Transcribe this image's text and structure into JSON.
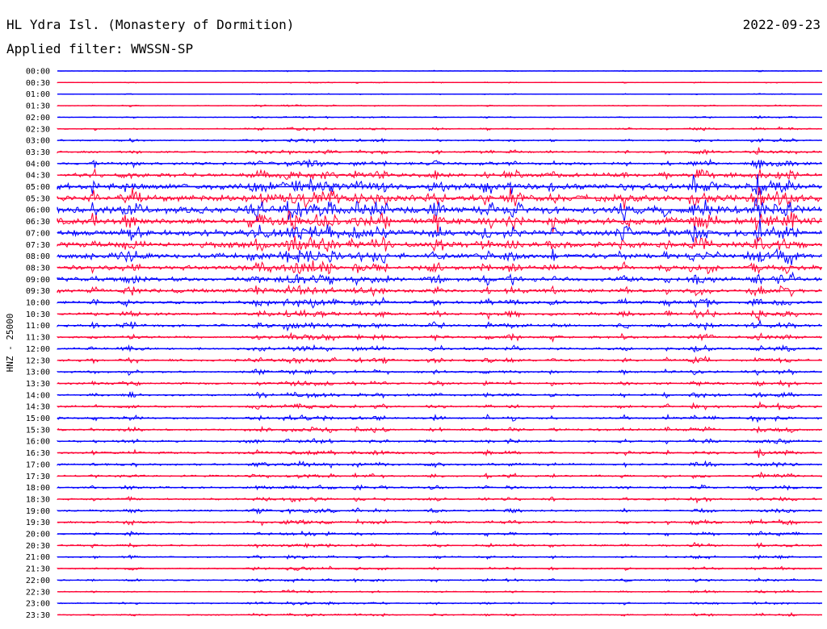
{
  "header": {
    "station": "HL Ydra Isl. (Monastery of Dormition)",
    "filter": "Applied filter: WWSSN-SP",
    "date": "2022-09-23"
  },
  "chart_data": {
    "type": "line",
    "title": "HL Ydra Isl. (Monastery of Dormition)",
    "ylabel": "HNZ - 25000",
    "colors": {
      "odd_rows": "#0000ff",
      "even_rows": "#ff0033"
    },
    "row_interval_minutes": 30,
    "categories": [
      "00:00",
      "00:30",
      "01:00",
      "01:30",
      "02:00",
      "02:30",
      "03:00",
      "03:30",
      "04:00",
      "04:30",
      "05:00",
      "05:30",
      "06:00",
      "06:30",
      "07:00",
      "07:30",
      "08:00",
      "08:30",
      "09:00",
      "09:30",
      "10:00",
      "10:30",
      "11:00",
      "11:30",
      "12:00",
      "12:30",
      "13:00",
      "13:30",
      "14:00",
      "14:30",
      "15:00",
      "15:30",
      "16:00",
      "16:30",
      "17:00",
      "17:30",
      "18:00",
      "18:30",
      "19:00",
      "19:30",
      "20:00",
      "20:30",
      "21:00",
      "21:30",
      "22:00",
      "22:30",
      "23:00",
      "23:30"
    ],
    "noise_level": [
      0.2,
      0.2,
      0.2,
      0.3,
      0.3,
      0.5,
      0.6,
      0.8,
      1.2,
      1.8,
      2.6,
      3.0,
      3.2,
      3.0,
      2.8,
      2.6,
      2.4,
      2.0,
      1.8,
      1.6,
      1.4,
      1.3,
      1.2,
      1.1,
      1.0,
      1.0,
      0.9,
      0.9,
      0.9,
      0.9,
      0.9,
      0.9,
      0.9,
      0.9,
      0.9,
      0.8,
      0.8,
      0.8,
      0.8,
      0.8,
      0.7,
      0.7,
      0.6,
      0.6,
      0.6,
      0.5,
      0.5,
      0.5
    ]
  }
}
